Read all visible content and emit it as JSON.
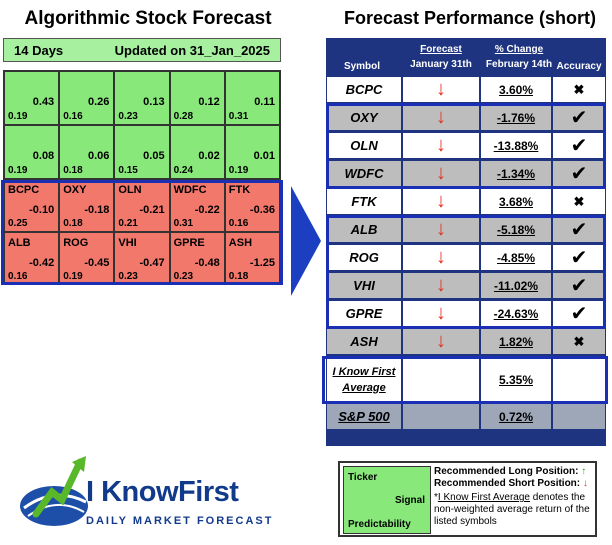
{
  "left": {
    "title": "Algorithmic Stock Forecast",
    "days": "14 Days",
    "updated": "Updated on 31_Jan_2025",
    "cells": [
      {
        "ticker": "",
        "signal": "0.43",
        "predictability": "0.19",
        "color": "green"
      },
      {
        "ticker": "",
        "signal": "0.26",
        "predictability": "0.16",
        "color": "green"
      },
      {
        "ticker": "",
        "signal": "0.13",
        "predictability": "0.23",
        "color": "green"
      },
      {
        "ticker": "",
        "signal": "0.12",
        "predictability": "0.28",
        "color": "green"
      },
      {
        "ticker": "",
        "signal": "0.11",
        "predictability": "0.31",
        "color": "green"
      },
      {
        "ticker": "",
        "signal": "0.08",
        "predictability": "0.19",
        "color": "green"
      },
      {
        "ticker": "",
        "signal": "0.06",
        "predictability": "0.18",
        "color": "green"
      },
      {
        "ticker": "",
        "signal": "0.05",
        "predictability": "0.15",
        "color": "green"
      },
      {
        "ticker": "",
        "signal": "0.02",
        "predictability": "0.24",
        "color": "green"
      },
      {
        "ticker": "",
        "signal": "0.01",
        "predictability": "0.19",
        "color": "green"
      },
      {
        "ticker": "BCPC",
        "signal": "-0.10",
        "predictability": "0.25",
        "color": "red"
      },
      {
        "ticker": "OXY",
        "signal": "-0.18",
        "predictability": "0.18",
        "color": "red"
      },
      {
        "ticker": "OLN",
        "signal": "-0.21",
        "predictability": "0.21",
        "color": "red"
      },
      {
        "ticker": "WDFC",
        "signal": "-0.22",
        "predictability": "0.31",
        "color": "red"
      },
      {
        "ticker": "FTK",
        "signal": "-0.36",
        "predictability": "0.16",
        "color": "red"
      },
      {
        "ticker": "ALB",
        "signal": "-0.42",
        "predictability": "0.16",
        "color": "red"
      },
      {
        "ticker": "ROG",
        "signal": "-0.45",
        "predictability": "0.19",
        "color": "red"
      },
      {
        "ticker": "VHI",
        "signal": "-0.47",
        "predictability": "0.23",
        "color": "red"
      },
      {
        "ticker": "GPRE",
        "signal": "-0.48",
        "predictability": "0.23",
        "color": "red"
      },
      {
        "ticker": "ASH",
        "signal": "-1.25",
        "predictability": "0.18",
        "color": "red"
      }
    ]
  },
  "right": {
    "title": "Forecast Performance (short)",
    "headers": {
      "symbol": "Symbol",
      "forecast_top": "Forecast",
      "forecast_bottom": "January 31th",
      "change_top": "% Change",
      "change_bottom": "February 14th",
      "accuracy": "Accuracy"
    },
    "rows": [
      {
        "symbol": "BCPC",
        "forecast": "↓",
        "change": "3.60%",
        "accuracy": "✖",
        "shade": "white"
      },
      {
        "symbol": "OXY",
        "forecast": "↓",
        "change": "-1.76%",
        "accuracy": "✔",
        "shade": "gray"
      },
      {
        "symbol": "OLN",
        "forecast": "↓",
        "change": "-13.88%",
        "accuracy": "✔",
        "shade": "white"
      },
      {
        "symbol": "WDFC",
        "forecast": "↓",
        "change": "-1.34%",
        "accuracy": "✔",
        "shade": "gray"
      },
      {
        "symbol": "FTK",
        "forecast": "↓",
        "change": "3.68%",
        "accuracy": "✖",
        "shade": "white"
      },
      {
        "symbol": "ALB",
        "forecast": "↓",
        "change": "-5.18%",
        "accuracy": "✔",
        "shade": "gray"
      },
      {
        "symbol": "ROG",
        "forecast": "↓",
        "change": "-4.85%",
        "accuracy": "✔",
        "shade": "white"
      },
      {
        "symbol": "VHI",
        "forecast": "↓",
        "change": "-11.02%",
        "accuracy": "✔",
        "shade": "gray"
      },
      {
        "symbol": "GPRE",
        "forecast": "↓",
        "change": "-24.63%",
        "accuracy": "✔",
        "shade": "white"
      },
      {
        "symbol": "ASH",
        "forecast": "↓",
        "change": "1.82%",
        "accuracy": "✖",
        "shade": "gray"
      }
    ],
    "average": {
      "line1": "I Know First",
      "line2": "Average",
      "change": "5.35%"
    },
    "sp500": {
      "symbol": "S&P 500",
      "change": "0.72%"
    }
  },
  "logo": {
    "name": "I KnowFirst",
    "tagline": "DAILY MARKET FORECAST"
  },
  "legend": {
    "ticker": "Ticker",
    "signal": "Signal",
    "predictability": "Predictability",
    "long": "Recommended Long Position:",
    "long_arrow": "↑",
    "short": "Recommended Short Position:",
    "short_arrow": "↓",
    "note_star": "*",
    "note_link": "I Know First Average",
    "note_rest": " denotes the non-weighted average return of the listed symbols"
  },
  "colors": {
    "green": "#88e87a",
    "red": "#f2786c",
    "navy": "#1e3480",
    "highlight": "#1b2fb5",
    "down_arrow": "#e0321f"
  }
}
